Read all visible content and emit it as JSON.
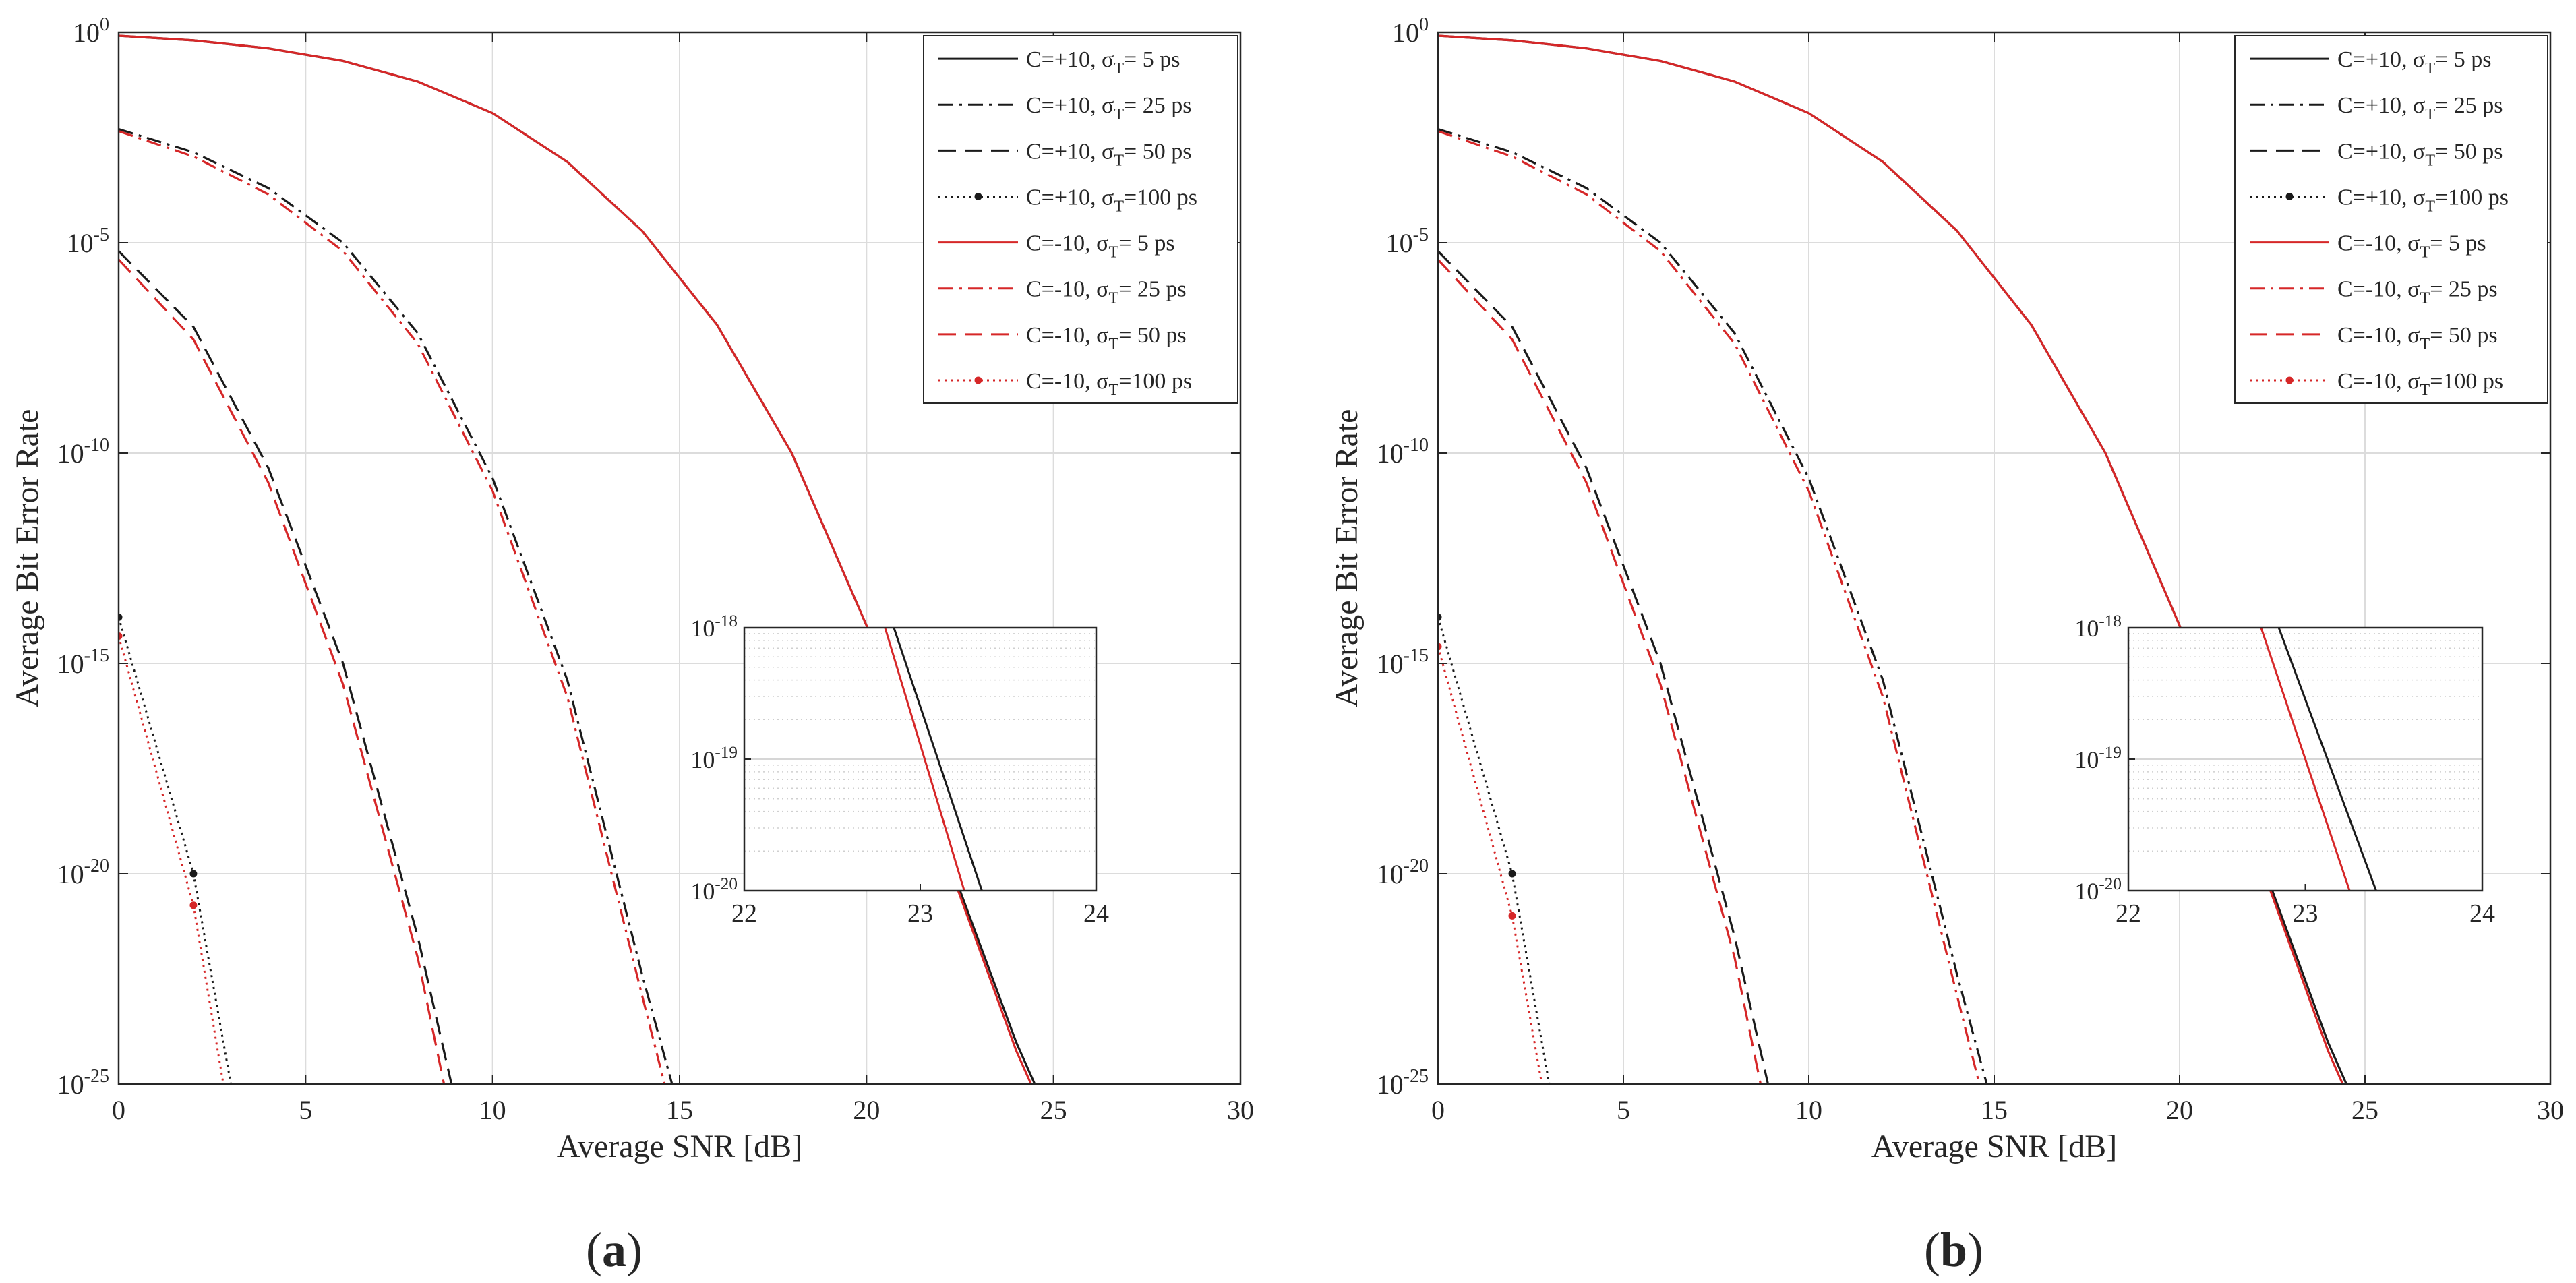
{
  "figure": {
    "panel_labels": [
      {
        "open": "(",
        "letter": "a",
        "close": ")"
      },
      {
        "open": "(",
        "letter": "b",
        "close": ")"
      }
    ]
  },
  "chart_data": [
    {
      "id": "a",
      "type": "line",
      "xlabel": "Average SNR [dB]",
      "ylabel": "Average Bit Error Rate",
      "xlim": [
        0,
        30
      ],
      "yscale": "log",
      "ylim_exp": [
        -25,
        0
      ],
      "xticks": [
        0,
        5,
        10,
        15,
        20,
        25,
        30
      ],
      "yticks_exp": [
        -25,
        -20,
        -15,
        -10,
        -5,
        0
      ],
      "grid": true,
      "legend_position": "top-right",
      "series": [
        {
          "C": "C=+10",
          "sigma": "σ",
          "sub": "T",
          "value": "= 5 ps",
          "color": "#1a1a1a",
          "dash": "solid",
          "marker": false,
          "x": [
            0,
            2,
            4,
            6,
            8,
            10,
            12,
            14,
            16,
            18,
            20,
            22,
            24,
            24.5
          ],
          "y_exp": [
            -0.08,
            -0.19,
            -0.38,
            -0.68,
            -1.17,
            -1.92,
            -3.08,
            -4.72,
            -6.95,
            -10.0,
            -14.1,
            -19.2,
            -24.0,
            -25.0
          ]
        },
        {
          "C": "C=+10",
          "sigma": "σ",
          "sub": "T",
          "value": "= 25 ps",
          "color": "#1a1a1a",
          "dash": "dashdot",
          "marker": false,
          "x": [
            0,
            2,
            4,
            6,
            8,
            10,
            12,
            14,
            14.8
          ],
          "y_exp": [
            -2.3,
            -2.85,
            -3.7,
            -5.0,
            -7.15,
            -10.6,
            -15.4,
            -22.4,
            -25.0
          ]
        },
        {
          "C": "C=+10",
          "sigma": "σ",
          "sub": "T",
          "value": "= 50 ps",
          "color": "#1a1a1a",
          "dash": "dashed",
          "marker": false,
          "x": [
            0,
            2,
            4,
            6,
            8,
            8.9
          ],
          "y_exp": [
            -5.2,
            -7.0,
            -10.35,
            -15.0,
            -21.5,
            -25.0
          ]
        },
        {
          "C": "C=+10",
          "sigma": "σ",
          "sub": "T",
          "value": "=100 ps",
          "color": "#1a1a1a",
          "dash": "dotted",
          "marker": true,
          "x": [
            0,
            2,
            3.0
          ],
          "y_exp": [
            -13.9,
            -20.0,
            -25.0
          ]
        },
        {
          "C": "C=-10",
          "sigma": "σ",
          "sub": "T",
          "value": "= 5 ps",
          "color": "#d62728",
          "dash": "solid",
          "marker": false,
          "x": [
            0,
            2,
            4,
            6,
            8,
            10,
            12,
            14,
            16,
            18,
            20,
            22,
            24,
            24.4
          ],
          "y_exp": [
            -0.08,
            -0.19,
            -0.38,
            -0.68,
            -1.17,
            -1.92,
            -3.08,
            -4.72,
            -6.95,
            -10.0,
            -14.1,
            -19.3,
            -24.2,
            -25.0
          ]
        },
        {
          "C": "C=-10",
          "sigma": "σ",
          "sub": "T",
          "value": "= 25 ps",
          "color": "#d62728",
          "dash": "dashdot",
          "marker": false,
          "x": [
            0,
            2,
            4,
            6,
            8,
            10,
            12,
            14,
            14.6
          ],
          "y_exp": [
            -2.35,
            -2.95,
            -3.85,
            -5.2,
            -7.4,
            -10.9,
            -15.8,
            -22.9,
            -25.0
          ]
        },
        {
          "C": "C=-10",
          "sigma": "σ",
          "sub": "T",
          "value": "= 50 ps",
          "color": "#d62728",
          "dash": "dashed",
          "marker": false,
          "x": [
            0,
            2,
            4,
            6,
            8,
            8.7
          ],
          "y_exp": [
            -5.4,
            -7.3,
            -10.7,
            -15.5,
            -22.0,
            -25.0
          ]
        },
        {
          "C": "C=-10",
          "sigma": "σ",
          "sub": "T",
          "value": "=100 ps",
          "color": "#d62728",
          "dash": "dotted",
          "marker": true,
          "x": [
            0,
            2,
            2.8
          ],
          "y_exp": [
            -14.35,
            -20.75,
            -25.0
          ]
        }
      ],
      "inset": {
        "xlim": [
          22,
          24
        ],
        "ylim_exp": [
          -20,
          -18
        ],
        "xticks": [
          22,
          23,
          24
        ],
        "yticks_exp": [
          -20,
          -19,
          -18
        ],
        "series": [
          {
            "color": "#1a1a1a",
            "x": [
              22.85,
              23.35
            ],
            "y_exp": [
              -18.0,
              -20.0
            ]
          },
          {
            "color": "#d62728",
            "x": [
              22.8,
              23.25
            ],
            "y_exp": [
              -18.0,
              -20.0
            ]
          }
        ]
      }
    },
    {
      "id": "b",
      "type": "line",
      "xlabel": "Average SNR [dB]",
      "ylabel": "Average Bit Error Rate",
      "xlim": [
        0,
        30
      ],
      "yscale": "log",
      "ylim_exp": [
        -25,
        0
      ],
      "xticks": [
        0,
        5,
        10,
        15,
        20,
        25,
        30
      ],
      "yticks_exp": [
        -25,
        -20,
        -15,
        -10,
        -5,
        0
      ],
      "grid": true,
      "legend_position": "top-right",
      "series": [
        {
          "C": "C=+10",
          "sigma": "σ",
          "sub": "T",
          "value": "= 5 ps",
          "color": "#1a1a1a",
          "dash": "solid",
          "marker": false,
          "x": [
            0,
            2,
            4,
            6,
            8,
            10,
            12,
            14,
            16,
            18,
            20,
            22,
            24,
            24.5
          ],
          "y_exp": [
            -0.08,
            -0.19,
            -0.38,
            -0.68,
            -1.17,
            -1.92,
            -3.08,
            -4.72,
            -6.95,
            -10.0,
            -14.1,
            -19.2,
            -24.0,
            -25.0
          ]
        },
        {
          "C": "C=+10",
          "sigma": "σ",
          "sub": "T",
          "value": "= 25 ps",
          "color": "#1a1a1a",
          "dash": "dashdot",
          "marker": false,
          "x": [
            0,
            2,
            4,
            6,
            8,
            10,
            12,
            14,
            14.8
          ],
          "y_exp": [
            -2.3,
            -2.85,
            -3.7,
            -5.0,
            -7.15,
            -10.6,
            -15.4,
            -22.4,
            -25.0
          ]
        },
        {
          "C": "C=+10",
          "sigma": "σ",
          "sub": "T",
          "value": "= 50 ps",
          "color": "#1a1a1a",
          "dash": "dashed",
          "marker": false,
          "x": [
            0,
            2,
            4,
            6,
            8,
            8.9
          ],
          "y_exp": [
            -5.2,
            -7.0,
            -10.35,
            -15.0,
            -21.5,
            -25.0
          ]
        },
        {
          "C": "C=+10",
          "sigma": "σ",
          "sub": "T",
          "value": "=100 ps",
          "color": "#1a1a1a",
          "dash": "dotted",
          "marker": true,
          "x": [
            0,
            2,
            3.0
          ],
          "y_exp": [
            -13.9,
            -20.0,
            -25.0
          ]
        },
        {
          "C": "C=-10",
          "sigma": "σ",
          "sub": "T",
          "value": "= 5 ps",
          "color": "#d62728",
          "dash": "solid",
          "marker": false,
          "x": [
            0,
            2,
            4,
            6,
            8,
            10,
            12,
            14,
            16,
            18,
            20,
            22,
            24,
            24.4
          ],
          "y_exp": [
            -0.08,
            -0.19,
            -0.38,
            -0.68,
            -1.17,
            -1.92,
            -3.08,
            -4.72,
            -6.95,
            -10.0,
            -14.1,
            -19.3,
            -24.2,
            -25.0
          ]
        },
        {
          "C": "C=-10",
          "sigma": "σ",
          "sub": "T",
          "value": "= 25 ps",
          "color": "#d62728",
          "dash": "dashdot",
          "marker": false,
          "x": [
            0,
            2,
            4,
            6,
            8,
            10,
            12,
            14,
            14.6
          ],
          "y_exp": [
            -2.35,
            -2.95,
            -3.85,
            -5.2,
            -7.4,
            -10.9,
            -15.8,
            -22.9,
            -25.0
          ]
        },
        {
          "C": "C=-10",
          "sigma": "σ",
          "sub": "T",
          "value": "= 50 ps",
          "color": "#d62728",
          "dash": "dashed",
          "marker": false,
          "x": [
            0,
            2,
            4,
            6,
            8,
            8.7
          ],
          "y_exp": [
            -5.4,
            -7.3,
            -10.7,
            -15.5,
            -22.0,
            -25.0
          ]
        },
        {
          "C": "C=-10",
          "sigma": "σ",
          "sub": "T",
          "value": "=100 ps",
          "color": "#d62728",
          "dash": "dotted",
          "marker": true,
          "x": [
            0,
            2,
            2.8
          ],
          "y_exp": [
            -14.6,
            -21.0,
            -25.0
          ]
        }
      ],
      "inset": {
        "xlim": [
          22,
          24
        ],
        "ylim_exp": [
          -20,
          -18
        ],
        "xticks": [
          22,
          23,
          24
        ],
        "yticks_exp": [
          -20,
          -19,
          -18
        ],
        "series": [
          {
            "color": "#1a1a1a",
            "x": [
              22.85,
              23.4
            ],
            "y_exp": [
              -18.0,
              -20.0
            ]
          },
          {
            "color": "#d62728",
            "x": [
              22.75,
              23.25
            ],
            "y_exp": [
              -18.0,
              -20.0
            ]
          }
        ]
      }
    }
  ]
}
